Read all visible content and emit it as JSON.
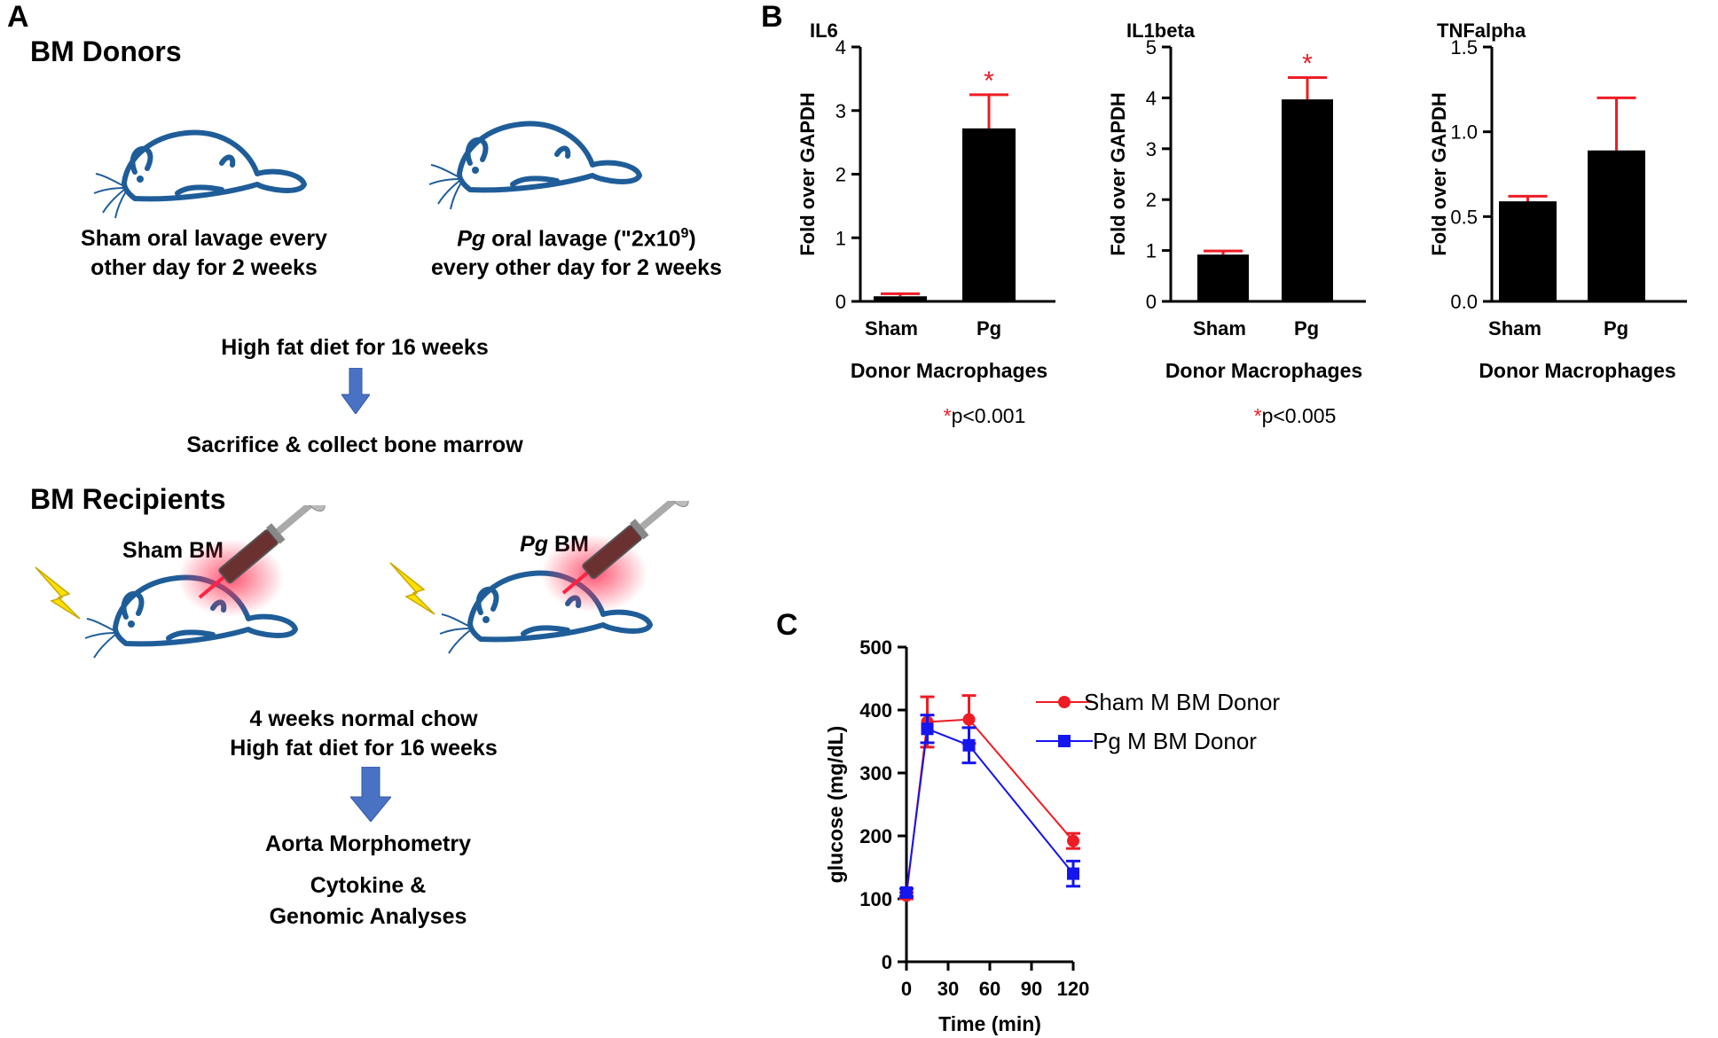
{
  "panelA": {
    "letter": "A",
    "donors_heading": "BM Donors",
    "sham_caption_line1": "Sham oral lavage every",
    "sham_caption_line2": "other day for 2 weeks",
    "pg_caption_italic": "Pg",
    "pg_caption_rest": " oral lavage (ʺ2x10",
    "pg_caption_sup": "9",
    "pg_caption_close": ")",
    "pg_caption_line2": "every other day for 2 weeks",
    "hfd_step": "High fat diet for 16 weeks",
    "sacrifice_step": "Sacrifice & collect  bone marrow",
    "recipients_heading": "BM Recipients",
    "sham_bm_label": "Sham BM",
    "pg_bm_italic": "Pg",
    "pg_bm_rest": " BM",
    "chow_step_line1": "4 weeks normal chow",
    "chow_step_line2": "High fat diet for 16 weeks",
    "final_line1": "Aorta Morphometry",
    "final_line2": "Cytokine &",
    "final_line3": "Genomic Analyses",
    "colors": {
      "mouse": "#1f5d99",
      "arrow": "#4a72c4",
      "bolt": "#ffe000",
      "glow": "#ff3355"
    }
  },
  "panelB": {
    "letter": "B"
  },
  "panelC": {
    "letter": "C"
  },
  "chart_data": [
    {
      "type": "bar",
      "title": "IL6",
      "categories": [
        "Sham",
        "Pg"
      ],
      "values": [
        0.08,
        2.72
      ],
      "errors": [
        0.04,
        0.53
      ],
      "ylabel": "Fold over GAPDH",
      "xlabel": "Donor Macrophages",
      "ylim": [
        0,
        4
      ],
      "yticks": [
        "0",
        "1",
        "2",
        "3",
        "4"
      ],
      "significance": "*",
      "pvalue_star": "*",
      "pvalue_text": "p<0.001"
    },
    {
      "type": "bar",
      "title": "IL1beta",
      "categories": [
        "Sham",
        "Pg"
      ],
      "values": [
        0.92,
        3.97
      ],
      "errors": [
        0.07,
        0.43
      ],
      "ylabel": "Fold over GAPDH",
      "xlabel": "Donor Macrophages",
      "ylim": [
        0,
        5
      ],
      "yticks": [
        "0",
        "1",
        "2",
        "3",
        "4",
        "5"
      ],
      "significance": "*",
      "pvalue_star": "*",
      "pvalue_text": "p<0.005"
    },
    {
      "type": "bar",
      "title": "TNFalpha",
      "categories": [
        "Sham",
        "Pg"
      ],
      "values": [
        0.59,
        0.89
      ],
      "errors": [
        0.03,
        0.31
      ],
      "ylabel": "Fold over GAPDH",
      "xlabel": "Donor Macrophages",
      "ylim": [
        0,
        1.5
      ],
      "yticks": [
        "0.0",
        "0.5",
        "1.0",
        "1.5"
      ],
      "significance": ""
    },
    {
      "type": "line",
      "x": [
        0,
        15,
        45,
        120
      ],
      "xticks": [
        "0",
        "30",
        "60",
        "90",
        "120"
      ],
      "xlim": [
        0,
        120
      ],
      "ylim": [
        0,
        500
      ],
      "yticks": [
        "0",
        "100",
        "200",
        "300",
        "400",
        "500"
      ],
      "xlabel": "Time (min)",
      "ylabel": "glucose (mg/dL)",
      "series": [
        {
          "name": "Sham M BM Donor",
          "values": [
            105,
            381,
            385,
            192
          ],
          "errors": [
            5,
            40,
            38,
            12
          ],
          "color": "#ee1c25",
          "marker": "circle"
        },
        {
          "name": "Pg M BM Donor",
          "values": [
            110,
            370,
            344,
            140
          ],
          "errors": [
            6,
            22,
            28,
            20
          ],
          "color": "#1515ee",
          "marker": "square"
        }
      ],
      "legend": "top-right"
    }
  ]
}
